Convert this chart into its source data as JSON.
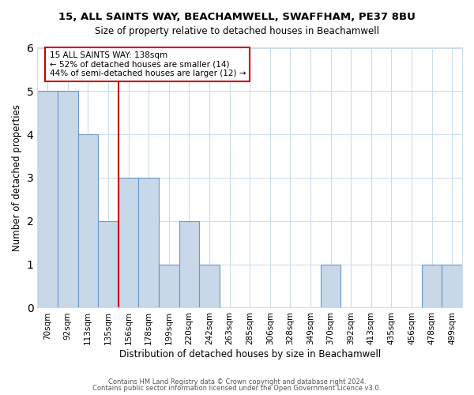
{
  "title": "15, ALL SAINTS WAY, BEACHAMWELL, SWAFFHAM, PE37 8BU",
  "subtitle": "Size of property relative to detached houses in Beachamwell",
  "xlabel": "Distribution of detached houses by size in Beachamwell",
  "ylabel": "Number of detached properties",
  "bar_labels": [
    "70sqm",
    "92sqm",
    "113sqm",
    "135sqm",
    "156sqm",
    "178sqm",
    "199sqm",
    "220sqm",
    "242sqm",
    "263sqm",
    "285sqm",
    "306sqm",
    "328sqm",
    "349sqm",
    "370sqm",
    "392sqm",
    "413sqm",
    "435sqm",
    "456sqm",
    "478sqm",
    "499sqm"
  ],
  "bar_values": [
    5,
    5,
    4,
    2,
    3,
    3,
    1,
    2,
    1,
    0,
    0,
    0,
    0,
    0,
    1,
    0,
    0,
    0,
    0,
    1,
    1
  ],
  "bar_color": "#c8d8e8",
  "bar_edge_color": "#6699cc",
  "grid_color": "#ccddee",
  "background_color": "#ffffff",
  "annotation_line1": "15 ALL SAINTS WAY: 138sqm",
  "annotation_line2": "← 52% of detached houses are smaller (14)",
  "annotation_line3": "44% of semi-detached houses are larger (12) →",
  "vline_x": 3.5,
  "vline_color": "#cc0000",
  "annotation_box_color": "#ffffff",
  "annotation_box_edge_color": "#cc0000",
  "ylim": [
    0,
    6
  ],
  "yticks": [
    0,
    1,
    2,
    3,
    4,
    5,
    6
  ],
  "footer1": "Contains HM Land Registry data © Crown copyright and database right 2024.",
  "footer2": "Contains public sector information licensed under the Open Government Licence v3.0."
}
